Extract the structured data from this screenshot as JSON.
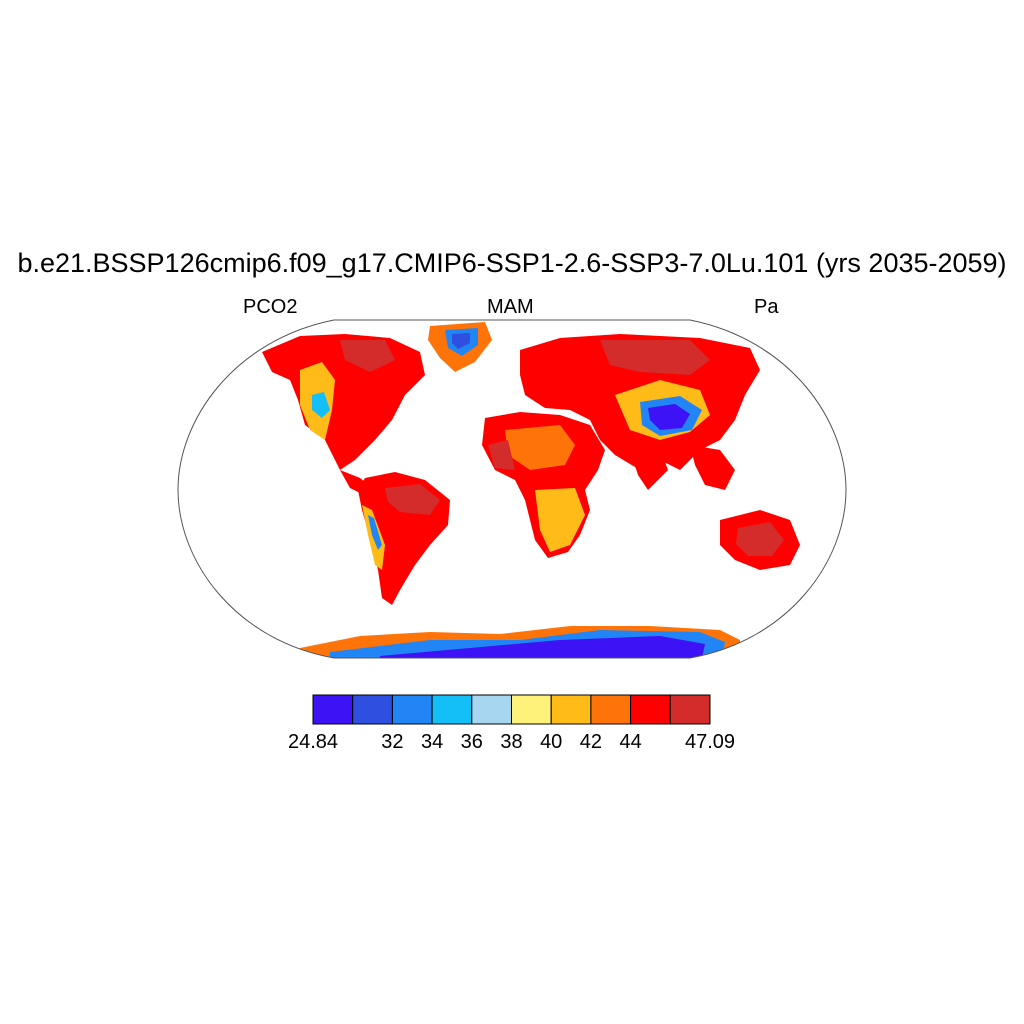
{
  "title": "b.e21.BSSP126cmip6.f09_g17.CMIP6-SSP1-2.6-SSP3-7.0Lu.101 (yrs 2035-2059)",
  "left_label": "PCO2",
  "center_label": "MAM",
  "right_label": "Pa",
  "colorbar": {
    "colors": [
      "#3d12f5",
      "#2f4fe0",
      "#2285f5",
      "#14bff7",
      "#a6d6f0",
      "#fff27a",
      "#ffbc18",
      "#ff7408",
      "#ff0000",
      "#d42b2b"
    ],
    "labels": [
      "24.84",
      "32",
      "34",
      "36",
      "38",
      "40",
      "42",
      "44",
      "47.09"
    ]
  },
  "colors": {
    "land_high": "#d42b2b",
    "land_main": "#ff0000",
    "land_orange": "#ff7408",
    "land_yellow": "#ffbc18",
    "ocean": "#ffffff"
  }
}
